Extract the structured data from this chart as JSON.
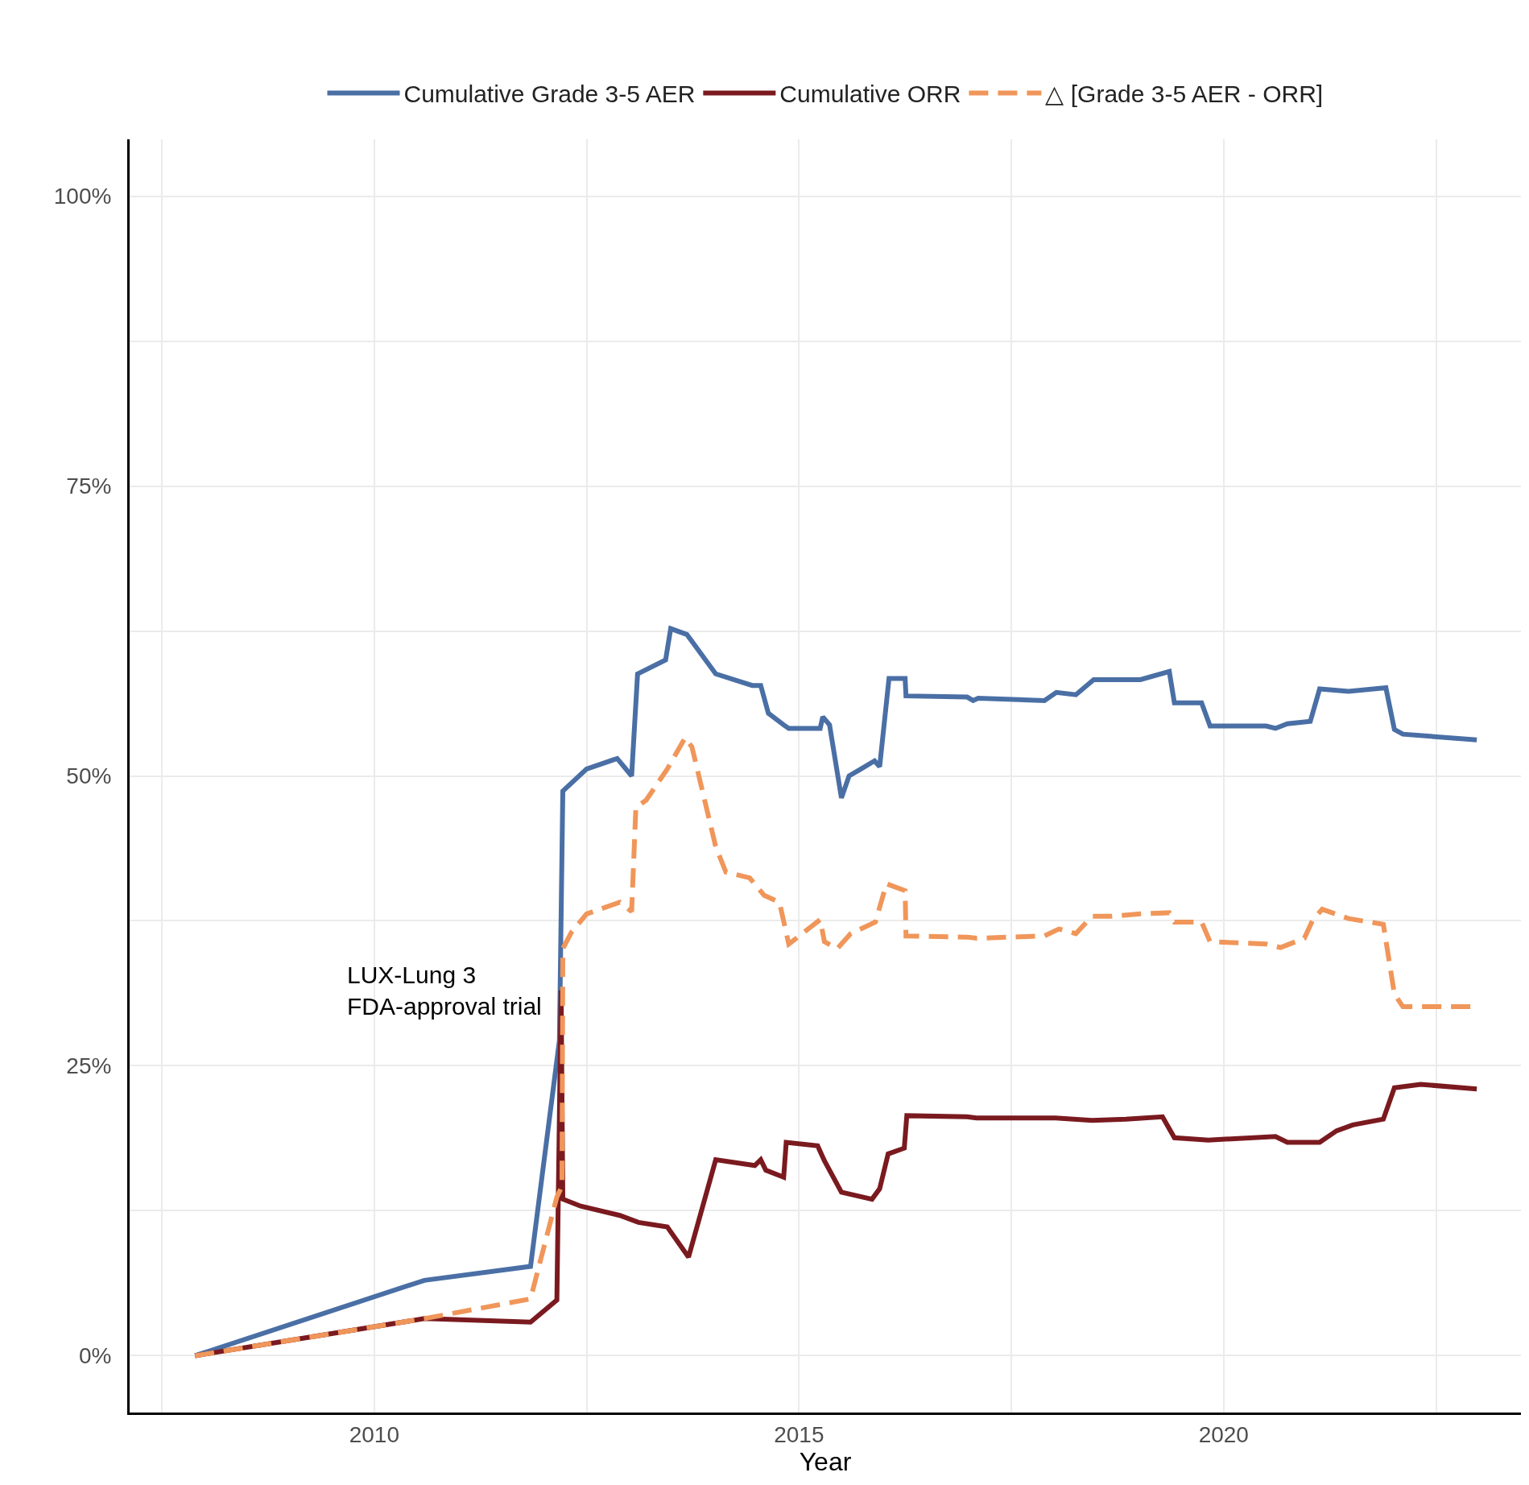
{
  "chart_data": {
    "type": "line",
    "xlabel": "Year",
    "legend": "top",
    "grid": true,
    "marker": "none",
    "xlim": [
      2007.12,
      2023.5
    ],
    "ylim": [
      -4.9,
      104.9
    ],
    "xticks": [
      {
        "value": 2007.5,
        "label": null
      },
      {
        "value": 2010,
        "label": "2010"
      },
      {
        "value": 2012.5,
        "label": null
      },
      {
        "value": 2015,
        "label": "2015"
      },
      {
        "value": 2017.5,
        "label": null
      },
      {
        "value": 2020,
        "label": "2020"
      },
      {
        "value": 2022.5,
        "label": null
      }
    ],
    "yticks": [
      {
        "value": 0,
        "label": "0%"
      },
      {
        "value": 12.5,
        "label": null
      },
      {
        "value": 25,
        "label": "25%"
      },
      {
        "value": 37.5,
        "label": null
      },
      {
        "value": 50,
        "label": "50%"
      },
      {
        "value": 62.5,
        "label": null
      },
      {
        "value": 75,
        "label": "75%"
      },
      {
        "value": 87.5,
        "label": null
      },
      {
        "value": 100,
        "label": "100%"
      }
    ],
    "annotations": [
      {
        "text": "LUX-Lung 3\nFDA-approval trial",
        "x": 2012.2,
        "y": 31.5
      }
    ],
    "series": [
      {
        "name": "Cumulative Grade 3-5 AER",
        "color": "#4a6fa5",
        "line_style": "solid",
        "x": [
          2007.89,
          2010.59,
          2011.84,
          2012.18,
          2012.22,
          2012.5,
          2012.86,
          2013.03,
          2013.1,
          2013.43,
          2013.49,
          2013.68,
          2014.02,
          2014.45,
          2014.55,
          2014.64,
          2014.82,
          2014.88,
          2015.25,
          2015.28,
          2015.36,
          2015.5,
          2015.59,
          2015.73,
          2015.89,
          2015.95,
          2016.06,
          2016.25,
          2016.26,
          2016.98,
          2017.05,
          2017.11,
          2017.89,
          2018.03,
          2018.26,
          2018.47,
          2018.68,
          2019.02,
          2019.36,
          2019.42,
          2019.74,
          2019.84,
          2020.5,
          2020.61,
          2020.75,
          2021.02,
          2021.13,
          2021.47,
          2021.91,
          2022.01,
          2022.11,
          2022.98
        ],
        "values": [
          0,
          6.5,
          7.7,
          27.2,
          48.7,
          50.6,
          51.5,
          50.0,
          58.8,
          60.0,
          62.7,
          62.2,
          58.8,
          57.8,
          57.8,
          55.4,
          54.4,
          54.1,
          54.1,
          55.1,
          54.4,
          48.1,
          50.0,
          50.6,
          51.3,
          50.8,
          58.4,
          58.4,
          56.9,
          56.8,
          56.5,
          56.7,
          56.5,
          57.2,
          57.0,
          58.3,
          58.3,
          58.3,
          59.0,
          56.3,
          56.3,
          54.3,
          54.3,
          54.1,
          54.5,
          54.7,
          57.5,
          57.3,
          57.6,
          54.0,
          53.6,
          53.1
        ]
      },
      {
        "name": "Cumulative ORR",
        "color": "#7a1a1f",
        "line_style": "solid",
        "x": [
          2007.89,
          2010.59,
          2011.84,
          2012.15,
          2012.2,
          2012.22,
          2012.43,
          2012.89,
          2013.11,
          2013.45,
          2013.7,
          2014.02,
          2014.48,
          2014.55,
          2014.61,
          2014.82,
          2014.85,
          2015.22,
          2015.3,
          2015.5,
          2015.86,
          2015.95,
          2016.05,
          2016.24,
          2016.27,
          2016.98,
          2017.09,
          2017.89,
          2018.02,
          2018.45,
          2018.85,
          2019.28,
          2019.42,
          2019.82,
          2020.61,
          2020.75,
          2021.13,
          2021.33,
          2021.52,
          2021.88,
          2022.01,
          2022.32,
          2022.98
        ],
        "values": [
          0,
          3.2,
          2.9,
          4.8,
          31.5,
          13.5,
          12.9,
          12.1,
          11.5,
          11.1,
          8.5,
          16.9,
          16.4,
          16.9,
          16.0,
          15.4,
          18.4,
          18.1,
          16.8,
          14.1,
          13.5,
          14.4,
          17.4,
          17.9,
          20.7,
          20.6,
          20.5,
          20.5,
          20.5,
          20.3,
          20.4,
          20.6,
          18.8,
          18.6,
          18.9,
          18.4,
          18.4,
          19.4,
          19.9,
          20.4,
          23.1,
          23.4,
          23.0
        ]
      },
      {
        "name": "△ [Grade 3-5 AER - ORR]",
        "color": "#f0965a",
        "line_style": "dashed",
        "x": [
          2007.89,
          2010.59,
          2011.84,
          2012.15,
          2012.21,
          2012.22,
          2012.32,
          2012.5,
          2012.89,
          2013.03,
          2013.08,
          2013.2,
          2013.45,
          2013.66,
          2013.74,
          2014.02,
          2014.14,
          2014.42,
          2014.59,
          2014.77,
          2014.88,
          2015.25,
          2015.3,
          2015.45,
          2015.61,
          2015.9,
          2016.03,
          2016.25,
          2016.26,
          2016.98,
          2017.09,
          2017.89,
          2018.06,
          2018.26,
          2018.45,
          2018.68,
          2019.02,
          2019.36,
          2019.42,
          2019.74,
          2019.84,
          2020.5,
          2020.67,
          2020.95,
          2021.05,
          2021.16,
          2021.47,
          2021.88,
          2022.01,
          2022.11,
          2022.98
        ],
        "values": [
          0,
          3.2,
          4.9,
          13.7,
          14.6,
          35.1,
          36.5,
          38.1,
          39.1,
          38.3,
          47.3,
          47.9,
          50.6,
          53.3,
          52.5,
          43.9,
          41.7,
          41.2,
          39.7,
          39.1,
          35.5,
          37.6,
          35.7,
          35.1,
          36.4,
          37.4,
          40.7,
          40.1,
          36.2,
          36.1,
          36.0,
          36.2,
          36.8,
          36.4,
          37.9,
          37.9,
          38.1,
          38.2,
          37.4,
          37.4,
          35.7,
          35.5,
          35.2,
          36.0,
          37.6,
          38.5,
          37.7,
          37.2,
          31.2,
          30.1,
          30.1
        ]
      }
    ]
  }
}
